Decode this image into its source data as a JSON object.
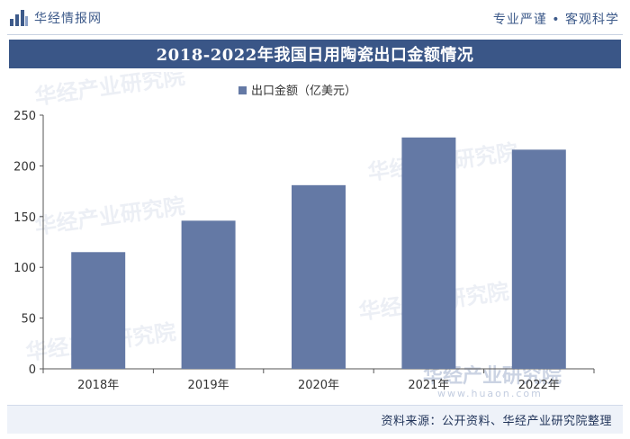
{
  "header": {
    "brand": "华经情报网",
    "slogan": "专业严谨 • 客观科学"
  },
  "title": "2018-2022年我国日用陶瓷出口金额情况",
  "chart_data": {
    "type": "bar",
    "title": "2018-2022年我国日用陶瓷出口金额情况",
    "categories": [
      "2018年",
      "2019年",
      "2020年",
      "2021年",
      "2022年"
    ],
    "series": [
      {
        "name": "出口金额（亿美元）",
        "values": [
          115,
          146,
          181,
          228,
          216
        ]
      }
    ],
    "ylim": [
      0,
      250
    ],
    "yticks": [
      0,
      50,
      100,
      150,
      200,
      250
    ],
    "xlabel": "",
    "ylabel": "",
    "legend_position": "top-center",
    "grid": false
  },
  "watermarks": {
    "text": "华经产业研究院",
    "url": "www.huaon.com"
  },
  "source": "资料来源：公开资料、华经产业研究院整理",
  "colors": {
    "bar": "#6479a5",
    "title_band": "#3a5687",
    "brand": "#3d5a8a",
    "axis": "#555555"
  }
}
